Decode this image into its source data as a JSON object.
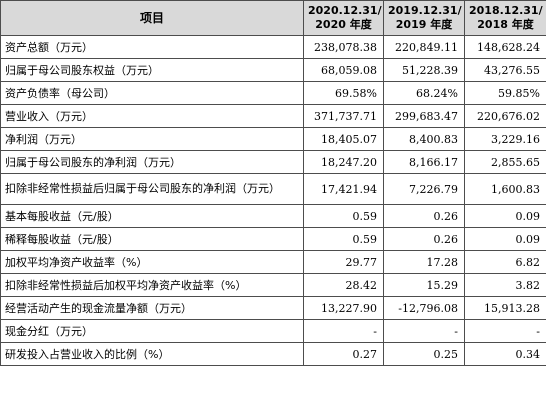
{
  "header": {
    "item": "项目",
    "col1_line1": "2020.12.31/",
    "col1_line2": "2020 年度",
    "col2_line1": "2019.12.31/",
    "col2_line2": "2019 年度",
    "col3_line1": "2018.12.31/",
    "col3_line2": "2018 年度"
  },
  "rows": [
    {
      "label": "资产总额（万元）",
      "v1": "238,078.38",
      "v2": "220,849.11",
      "v3": "148,628.24"
    },
    {
      "label": "归属于母公司股东权益（万元）",
      "v1": "68,059.08",
      "v2": "51,228.39",
      "v3": "43,276.55"
    },
    {
      "label": "资产负债率（母公司）",
      "v1": "69.58%",
      "v2": "68.24%",
      "v3": "59.85%"
    },
    {
      "label": "营业收入（万元）",
      "v1": "371,737.71",
      "v2": "299,683.47",
      "v3": "220,676.02"
    },
    {
      "label": "净利润（万元）",
      "v1": "18,405.07",
      "v2": "8,400.83",
      "v3": "3,229.16"
    },
    {
      "label": "归属于母公司股东的净利润（万元）",
      "v1": "18,247.20",
      "v2": "8,166.17",
      "v3": "2,855.65"
    },
    {
      "label": "扣除非经常性损益后归属于母公司股东的净利润（万元）",
      "v1": "17,421.94",
      "v2": "7,226.79",
      "v3": "1,600.83"
    },
    {
      "label": "基本每股收益（元/股）",
      "v1": "0.59",
      "v2": "0.26",
      "v3": "0.09"
    },
    {
      "label": "稀释每股收益（元/股）",
      "v1": "0.59",
      "v2": "0.26",
      "v3": "0.09"
    },
    {
      "label": "加权平均净资产收益率（%）",
      "v1": "29.77",
      "v2": "17.28",
      "v3": "6.82"
    },
    {
      "label": "扣除非经常性损益后加权平均净资产收益率（%）",
      "v1": "28.42",
      "v2": "15.29",
      "v3": "3.82"
    },
    {
      "label": "经营活动产生的现金流量净额（万元）",
      "v1": "13,227.90",
      "v2": "-12,796.08",
      "v3": "15,913.28"
    },
    {
      "label": "现金分红（万元）",
      "v1": "-",
      "v2": "-",
      "v3": "-"
    },
    {
      "label": "研发投入占营业收入的比例（%）",
      "v1": "0.27",
      "v2": "0.25",
      "v3": "0.34"
    }
  ]
}
